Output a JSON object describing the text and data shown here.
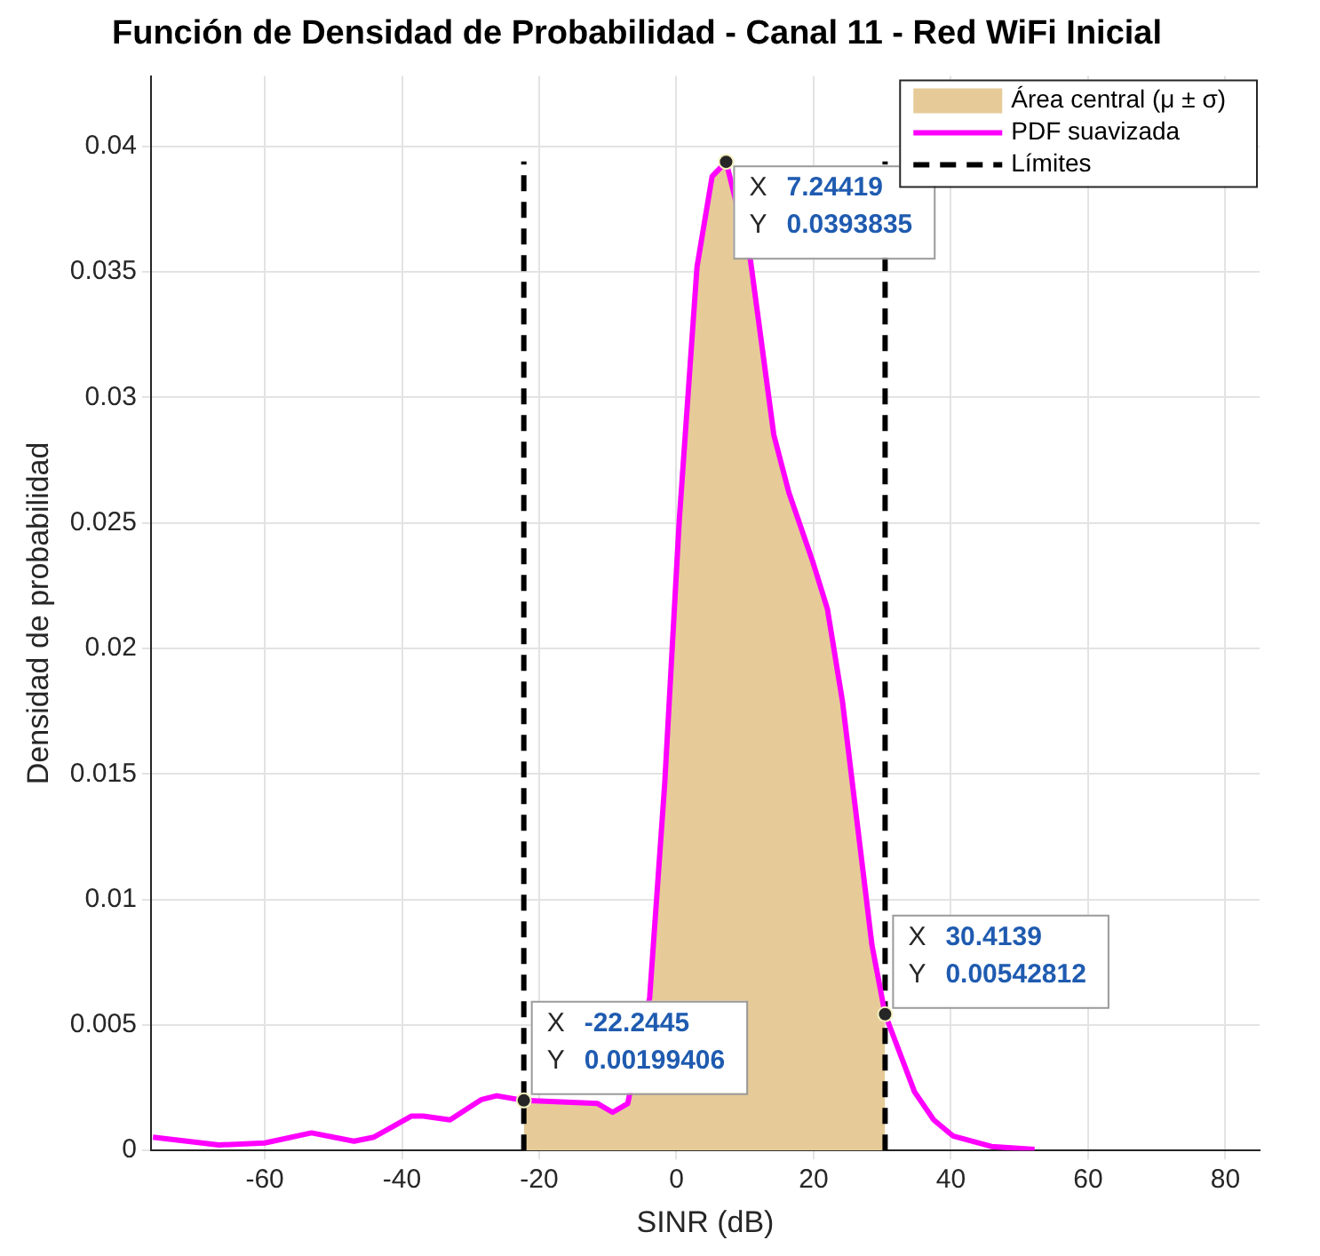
{
  "chart_data": {
    "type": "line",
    "title": "Función de Densidad de Probabilidad - Canal 11 - Red WiFi Inicial",
    "xlabel": "SINR (dB)",
    "ylabel": "Densidad de probabilidad",
    "xlim": [
      -76.6,
      85
    ],
    "xticks": [
      -60,
      -40,
      -20,
      0,
      20,
      40,
      60,
      80
    ],
    "ylim": [
      0,
      0.0428
    ],
    "yticks": [
      0,
      0.005,
      0.01,
      0.015,
      0.02,
      0.025,
      0.03,
      0.035,
      0.04
    ],
    "grid": true,
    "legend": "top right",
    "line_style": "solid",
    "marker": "none",
    "series": [
      {
        "type": "area",
        "name": "Área central (μ ± σ)",
        "color": "#e6cb98",
        "x": [
          -22.2445,
          -11.5,
          -9.3,
          -7.1,
          -3.9,
          -1.7,
          0.4,
          3.0,
          5.2,
          7.24419,
          10.8,
          14.2,
          16.4,
          19.9,
          22.0,
          24.2,
          28.5,
          30.4139
        ],
        "values": [
          0.00199406,
          0.00187,
          0.00152,
          0.00187,
          0.0061,
          0.01465,
          0.02505,
          0.0352,
          0.0388,
          0.0393835,
          0.03545,
          0.0285,
          0.0262,
          0.02343,
          0.02158,
          0.01789,
          0.00818,
          0.00542812
        ]
      },
      {
        "type": "line",
        "name": "PDF suavizada",
        "color": "#ff00ff",
        "x": [
          -76.3,
          -66.7,
          -60,
          -53.2,
          -47,
          -44.1,
          -38.6,
          -36.9,
          -33,
          -28.4,
          -26.2,
          -22.2445,
          -11.5,
          -9.3,
          -7.1,
          -3.9,
          -1.7,
          0.4,
          3.0,
          5.2,
          7.24419,
          10.8,
          14.2,
          16.4,
          19.9,
          22.0,
          24.2,
          28.5,
          30.4139,
          34.7,
          37.5,
          40.3,
          45.9,
          52.2
        ],
        "values": [
          0.00053,
          0.00022,
          0.0003,
          0.0007,
          0.00037,
          0.00053,
          0.00137,
          0.00137,
          0.00122,
          0.00203,
          0.00218,
          0.00199406,
          0.00187,
          0.00152,
          0.00187,
          0.0061,
          0.01465,
          0.02505,
          0.0352,
          0.0388,
          0.0393835,
          0.03545,
          0.0285,
          0.0262,
          0.02343,
          0.02158,
          0.01789,
          0.00818,
          0.00542812,
          0.00234,
          0.00122,
          0.00058,
          0.00016,
          4e-05
        ]
      },
      {
        "type": "line",
        "name": "Límites",
        "color": "#000000",
        "line_style": "dashed",
        "x": [
          -22.2445,
          -22.2445
        ],
        "values": [
          0,
          0.0394
        ]
      },
      {
        "type": "line",
        "color": "#000000",
        "line_style": "dashed",
        "x": [
          30.4139,
          30.4139
        ],
        "values": [
          0,
          0.0394
        ]
      }
    ],
    "annotations": [
      {
        "text": "X 7.24419\nY 0.0393835",
        "x": 7.24419,
        "y": 0.0393835
      },
      {
        "text": "X -22.2445\nY 0.00199406",
        "x": -22.2445,
        "y": 0.00199406
      },
      {
        "text": "X 30.4139\nY 0.00542812",
        "x": 30.4139,
        "y": 0.00542812
      }
    ]
  }
}
